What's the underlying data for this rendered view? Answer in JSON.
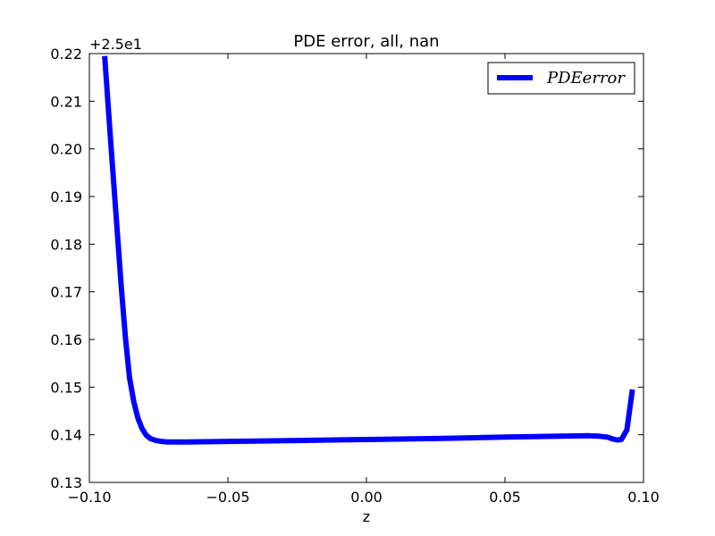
{
  "chart_data": {
    "type": "line",
    "title": "PDE error, all, nan",
    "xlabel": "z",
    "ylabel": "",
    "y_offset_label": "+2.5e1",
    "xlim": [
      -0.1,
      0.1
    ],
    "ylim": [
      0.13,
      0.22
    ],
    "x_ticks": [
      -0.1,
      -0.05,
      0.0,
      0.05,
      0.1
    ],
    "x_tick_labels": [
      "−0.10",
      "−0.05",
      "0.00",
      "0.05",
      "0.10"
    ],
    "y_ticks": [
      0.13,
      0.14,
      0.15,
      0.16,
      0.17,
      0.18,
      0.19,
      0.2,
      0.21,
      0.22
    ],
    "y_tick_labels": [
      "0.13",
      "0.14",
      "0.15",
      "0.16",
      "0.17",
      "0.18",
      "0.19",
      "0.20",
      "0.21",
      "0.22"
    ],
    "grid": false,
    "legend_position": "top-right",
    "series": [
      {
        "name": "PDEerror",
        "color": "#0000ff",
        "x": [
          -0.0945,
          -0.0925,
          -0.0905,
          -0.0885,
          -0.087,
          -0.0855,
          -0.084,
          -0.0825,
          -0.081,
          -0.0795,
          -0.078,
          -0.076,
          -0.074,
          -0.072,
          -0.07,
          -0.065,
          -0.05,
          -0.025,
          0.0,
          0.025,
          0.05,
          0.07,
          0.08,
          0.084,
          0.087,
          0.089,
          0.0905,
          0.092,
          0.094,
          0.096
        ],
        "y": [
          0.2195,
          0.203,
          0.187,
          0.171,
          0.1605,
          0.152,
          0.147,
          0.1435,
          0.1413,
          0.1399,
          0.1392,
          0.1388,
          0.1386,
          0.1385,
          0.1385,
          0.1385,
          0.1386,
          0.1388,
          0.139,
          0.1392,
          0.1395,
          0.1397,
          0.1398,
          0.1397,
          0.1395,
          0.1391,
          0.1389,
          0.139,
          0.141,
          0.1495
        ]
      }
    ]
  }
}
